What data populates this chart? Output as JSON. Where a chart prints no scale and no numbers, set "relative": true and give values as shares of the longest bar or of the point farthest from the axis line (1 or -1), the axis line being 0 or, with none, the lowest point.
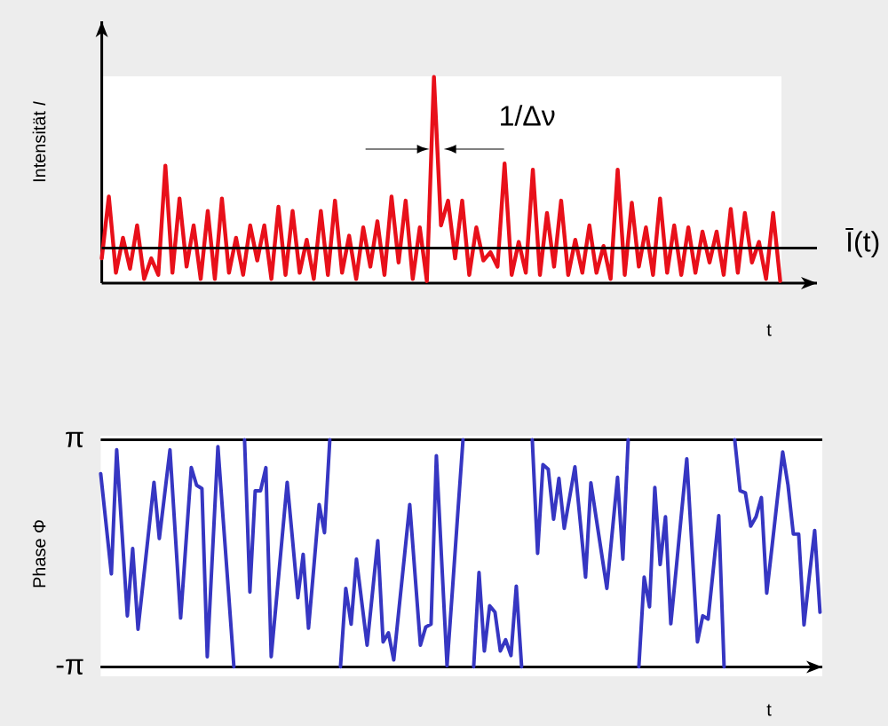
{
  "chart_data": [
    {
      "type": "line",
      "relative": true,
      "xlabel": "t",
      "ylabel": "Intensität *I*",
      "tick_labels": false,
      "color": "#e8101a",
      "categories": [
        null,
        null,
        null,
        null,
        null,
        null,
        null,
        null,
        null,
        null,
        null,
        null,
        null,
        null,
        null,
        null,
        null,
        null,
        null,
        null,
        null,
        null,
        null,
        null,
        null,
        null,
        null,
        null,
        null,
        null,
        null,
        null,
        null,
        null,
        null,
        null,
        null,
        null,
        null,
        null,
        null,
        null,
        null,
        null,
        null,
        null,
        null,
        null,
        null,
        null,
        null,
        null,
        null,
        null,
        null,
        null,
        null,
        null,
        null,
        null,
        null,
        null,
        null,
        null,
        null,
        null,
        null,
        null,
        null,
        null,
        null,
        null,
        null,
        null,
        null,
        null,
        null,
        null,
        null,
        null,
        null,
        null,
        null,
        null,
        null,
        null,
        null,
        null,
        null,
        null,
        null,
        null,
        null,
        null,
        null,
        null,
        null
      ],
      "values": [
        0.12,
        0.42,
        0.05,
        0.22,
        0.07,
        0.28,
        0.02,
        0.12,
        0.04,
        0.57,
        0.05,
        0.41,
        0.08,
        0.28,
        0.02,
        0.35,
        0.02,
        0.41,
        0.05,
        0.22,
        0.04,
        0.28,
        0.11,
        0.28,
        0.02,
        0.37,
        0.04,
        0.35,
        0.05,
        0.21,
        0.02,
        0.35,
        0.04,
        0.4,
        0.05,
        0.23,
        0.02,
        0.27,
        0.08,
        0.3,
        0.04,
        0.42,
        0.1,
        0.4,
        0.02,
        0.27,
        0.01,
        1.0,
        0.28,
        0.4,
        0.12,
        0.4,
        0.04,
        0.27,
        0.11,
        0.15,
        0.08,
        0.58,
        0.04,
        0.2,
        0.05,
        0.55,
        0.04,
        0.34,
        0.08,
        0.4,
        0.04,
        0.21,
        0.05,
        0.28,
        0.05,
        0.18,
        0.02,
        0.55,
        0.04,
        0.39,
        0.08,
        0.27,
        0.04,
        0.41,
        0.05,
        0.28,
        0.04,
        0.27,
        0.05,
        0.25,
        0.1,
        0.25,
        0.04,
        0.36,
        0.05,
        0.34,
        0.1,
        0.2,
        0.02,
        0.34,
        0.01
      ],
      "ref_lines": [
        {
          "axis": "y",
          "value": 0.17,
          "label": "Ī(t)"
        }
      ],
      "annotations": [
        "1/Δν"
      ]
    },
    {
      "type": "line",
      "xlabel": "t",
      "ylabel": "Phase Φ",
      "tick_labels": "y",
      "grid": "y",
      "color": "#3636c2",
      "ylim": [
        -3.1416,
        3.1416
      ],
      "yticks": [
        {
          "value": -3.1416,
          "label": "-π"
        },
        {
          "value": 3.1416,
          "label": "π"
        }
      ],
      "categories": [
        null,
        null,
        null,
        null,
        null,
        null,
        null,
        null,
        null,
        null,
        null,
        null,
        null,
        null,
        null,
        null,
        null,
        null,
        null,
        null,
        null,
        null,
        null,
        null,
        null,
        null,
        null,
        null,
        null,
        null,
        null,
        null,
        null,
        null,
        null,
        null,
        null,
        null,
        null,
        null,
        null,
        null,
        null,
        null,
        null,
        null,
        null,
        null,
        null,
        null,
        null,
        null,
        null,
        null,
        null,
        null,
        null,
        null,
        null,
        null,
        null,
        null,
        null,
        null,
        null,
        null,
        null,
        null,
        null,
        null,
        null,
        null,
        null,
        null,
        null,
        null,
        null,
        null,
        null,
        null,
        null,
        null,
        null,
        null,
        null,
        null,
        null,
        null,
        null,
        null,
        null,
        null,
        null,
        null,
        null,
        null,
        null,
        null,
        null,
        null,
        null,
        null,
        null,
        null,
        null,
        null,
        null,
        null,
        null,
        null,
        null,
        null,
        null,
        null,
        null,
        null,
        null,
        null,
        null,
        null,
        null,
        null,
        null,
        null,
        null,
        null,
        null,
        null,
        null,
        null,
        null,
        null,
        null,
        null,
        null,
        null
      ],
      "values": [
        2.2,
        0.82,
        -0.57,
        2.86,
        0.57,
        -1.73,
        0.13,
        -2.1,
        -0.75,
        0.6,
        1.96,
        0.41,
        1.63,
        2.86,
        0.53,
        -1.79,
        0.28,
        2.37,
        1.88,
        1.79,
        -2.86,
        0.06,
        2.95,
        0.91,
        -1.1,
        -3.14,
        null,
        3.14,
        -1.07,
        1.73,
        1.73,
        2.37,
        -2.86,
        -1.26,
        0.35,
        1.96,
        0.38,
        -1.23,
        -0.03,
        -2.07,
        -0.38,
        1.35,
        0.57,
        3.14,
        null,
        -3.14,
        -0.97,
        -1.96,
        -0.16,
        -1.35,
        -2.54,
        -1.1,
        0.35,
        -2.45,
        -2.2,
        -2.95,
        -1.51,
        -0.09,
        1.35,
        -0.6,
        -2.54,
        -2.04,
        -1.96,
        2.7,
        -0.22,
        -3.11,
        -1.04,
        1.07,
        3.14,
        null,
        -3.14,
        -0.53,
        -2.7,
        -1.45,
        -1.63,
        -2.7,
        -2.39,
        -2.83,
        -0.91,
        -3.14,
        null,
        3.14,
        0.0,
        2.45,
        2.32,
        0.94,
        2.07,
        0.69,
        1.54,
        2.39,
        0.88,
        -0.66,
        1.95,
        0.97,
        0.0,
        -0.97,
        0.57,
        2.1,
        -0.16,
        3.14,
        null,
        -3.14,
        -0.66,
        -1.48,
        1.82,
        -0.31,
        1.01,
        -1.95,
        -0.44,
        1.1,
        2.61,
        0.09,
        -2.45,
        -1.73,
        -1.82,
        -0.41,
        1.04,
        -3.14,
        null,
        3.14,
        1.73,
        1.67,
        0.75,
        1.01,
        1.54,
        -1.1,
        0.19,
        1.51,
        2.8,
        1.88,
        0.53,
        0.53,
        -1.98,
        -0.63,
        0.63,
        -1.63
      ]
    }
  ]
}
